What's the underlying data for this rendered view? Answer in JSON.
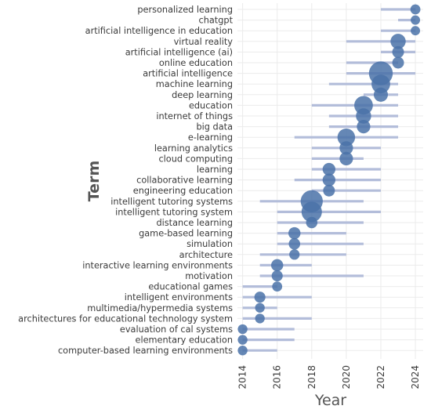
{
  "chart_data": {
    "type": "scatter",
    "subtype": "trend-topics-timeline",
    "xlabel": "Year",
    "ylabel": "Term",
    "xlim": [
      2013.7,
      2024.45
    ],
    "x_ticks": [
      2014,
      2016,
      2018,
      2020,
      2022,
      2024
    ],
    "grid": "horizontal",
    "colors": {
      "point": "#4a72a8",
      "range_bar": "#b3bdda",
      "grid": "#ebebeb"
    },
    "terms": [
      {
        "term": "personalized learning",
        "start": 2022,
        "median": 2024,
        "end": 2024,
        "size": 1
      },
      {
        "term": "chatgpt",
        "start": 2023,
        "median": 2024,
        "end": 2024,
        "size": 0.8
      },
      {
        "term": "artificial intelligence in education",
        "start": 2022,
        "median": 2024,
        "end": 2024,
        "size": 0.8
      },
      {
        "term": "virtual reality",
        "start": 2020,
        "median": 2023,
        "end": 2024,
        "size": 2.5
      },
      {
        "term": "artificial intelligence (ai)",
        "start": 2022,
        "median": 2023,
        "end": 2024,
        "size": 1.5
      },
      {
        "term": "online education",
        "start": 2020,
        "median": 2023,
        "end": 2023,
        "size": 1.5
      },
      {
        "term": "artificial intelligence",
        "start": 2020,
        "median": 2022,
        "end": 2024,
        "size": 5
      },
      {
        "term": "machine learning",
        "start": 2019,
        "median": 2022,
        "end": 2023,
        "size": 3.5
      },
      {
        "term": "deep learning",
        "start": 2021,
        "median": 2022,
        "end": 2023,
        "size": 2.2
      },
      {
        "term": "education",
        "start": 2018,
        "median": 2021,
        "end": 2023,
        "size": 3.5
      },
      {
        "term": "internet of things",
        "start": 2019,
        "median": 2021,
        "end": 2023,
        "size": 2.5
      },
      {
        "term": "big data",
        "start": 2019,
        "median": 2021,
        "end": 2023,
        "size": 2
      },
      {
        "term": "e-learning",
        "start": 2017,
        "median": 2020,
        "end": 2023,
        "size": 3.2
      },
      {
        "term": "learning analytics",
        "start": 2018,
        "median": 2020,
        "end": 2022,
        "size": 2
      },
      {
        "term": "cloud computing",
        "start": 2018,
        "median": 2020,
        "end": 2021,
        "size": 2
      },
      {
        "term": "learning",
        "start": 2018,
        "median": 2019,
        "end": 2022,
        "size": 1.8
      },
      {
        "term": "collaborative learning",
        "start": 2017,
        "median": 2019,
        "end": 2022,
        "size": 1.8
      },
      {
        "term": "engineering education",
        "start": 2018,
        "median": 2019,
        "end": 2022,
        "size": 1.5
      },
      {
        "term": "intelligent tutoring systems",
        "start": 2015,
        "median": 2018,
        "end": 2021,
        "size": 4.5
      },
      {
        "term": "intelligent tutoring system",
        "start": 2016,
        "median": 2018,
        "end": 2022,
        "size": 4
      },
      {
        "term": "distance learning",
        "start": 2016,
        "median": 2018,
        "end": 2021,
        "size": 1.4
      },
      {
        "term": "game-based learning",
        "start": 2016,
        "median": 2017,
        "end": 2020,
        "size": 1.6
      },
      {
        "term": "simulation",
        "start": 2016,
        "median": 2017,
        "end": 2021,
        "size": 1.4
      },
      {
        "term": "architecture",
        "start": 2015,
        "median": 2017,
        "end": 2020,
        "size": 1.1
      },
      {
        "term": "interactive learning environments",
        "start": 2015,
        "median": 2016,
        "end": 2018,
        "size": 1.6
      },
      {
        "term": "motivation",
        "start": 2015,
        "median": 2016,
        "end": 2021,
        "size": 1.3
      },
      {
        "term": "educational games",
        "start": 2014,
        "median": 2016,
        "end": 2016,
        "size": 1
      },
      {
        "term": "intelligent environments",
        "start": 2014,
        "median": 2015,
        "end": 2018,
        "size": 1.3
      },
      {
        "term": "multimedia/hypermedia systems",
        "start": 2014,
        "median": 2015,
        "end": 2016,
        "size": 0.9
      },
      {
        "term": "architectures for educational technology system",
        "start": 2014,
        "median": 2015,
        "end": 2018,
        "size": 0.9
      },
      {
        "term": "evaluation of cal systems",
        "start": 2014,
        "median": 2014,
        "end": 2017,
        "size": 0.9
      },
      {
        "term": "elementary education",
        "start": 2014,
        "median": 2014,
        "end": 2017,
        "size": 0.9
      },
      {
        "term": "computer-based learning environments",
        "start": 2014,
        "median": 2014,
        "end": 2016,
        "size": 0.9
      }
    ]
  }
}
